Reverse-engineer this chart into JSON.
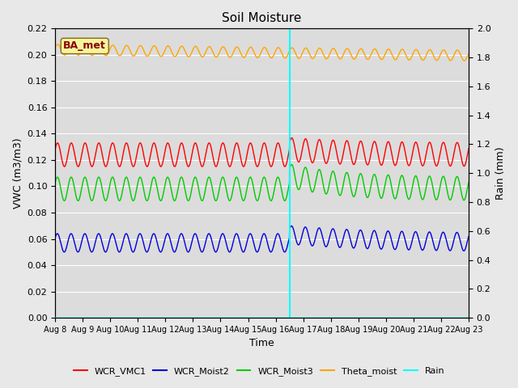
{
  "title": "Soil Moisture",
  "xlabel": "Time",
  "ylabel_left": "VWC (m3/m3)",
  "ylabel_right": "Rain (mm)",
  "ylim_left": [
    0.0,
    0.22
  ],
  "ylim_right": [
    0.0,
    2.0
  ],
  "x_tick_labels": [
    "Aug 8",
    "Aug 9",
    "Aug 10",
    "Aug 11",
    "Aug 12",
    "Aug 13",
    "Aug 14",
    "Aug 15",
    "Aug 16",
    "Aug 17",
    "Aug 18",
    "Aug 19",
    "Aug 20",
    "Aug 21",
    "Aug 22",
    "Aug 23"
  ],
  "figure_bg": "#e8e8e8",
  "plot_bg": "#dcdcdc",
  "grid_color": "#ffffff",
  "annotation_label": "BA_met",
  "vline_x": 8.5,
  "vline_color": "cyan",
  "series": {
    "WCR_VMC1": {
      "color": "#ff0000",
      "base": 0.124,
      "amplitude": 0.009,
      "freq": 2.0,
      "phase": 0.5
    },
    "WCR_Moist2": {
      "color": "#0000dd",
      "base": 0.057,
      "amplitude": 0.007,
      "freq": 2.0,
      "phase": 0.6
    },
    "WCR_Moist3": {
      "color": "#00cc00",
      "base": 0.098,
      "amplitude": 0.009,
      "freq": 2.0,
      "phase": 0.55
    },
    "Theta_moist": {
      "color": "#ffa500",
      "base": 0.204,
      "amplitude": 0.004,
      "freq": 2.0,
      "phase": 0.4
    }
  },
  "legend_entries": [
    "WCR_VMC1",
    "WCR_Moist2",
    "WCR_Moist3",
    "Theta_moist",
    "Rain"
  ],
  "legend_colors": [
    "#ff0000",
    "#0000dd",
    "#00cc00",
    "#ffa500",
    "cyan"
  ]
}
